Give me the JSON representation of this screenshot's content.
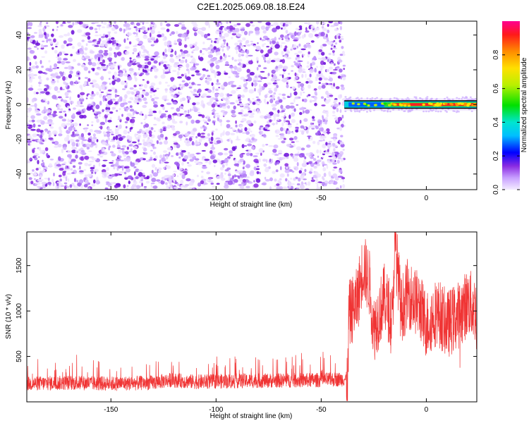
{
  "title": "C2E1.2025.069.08.18.E24",
  "chart_data": [
    {
      "type": "heatmap",
      "xlabel": "Height of straight line (km)",
      "ylabel": "Frequency (Hz)",
      "xlim": [
        -190,
        24
      ],
      "ylim": [
        -49,
        48
      ],
      "xticks": [
        -150,
        -100,
        -50,
        0
      ],
      "yticks": [
        40,
        20,
        0,
        -20,
        -40
      ],
      "noise_region": {
        "x": [
          -190,
          -39
        ],
        "y": [
          -49,
          48
        ],
        "amplitude": 0.1
      },
      "signal_band": {
        "x": [
          -39,
          24
        ],
        "frequency": 0,
        "amplitude": 0.9
      },
      "colorbar": {
        "label": "Normalized spectral amplitude",
        "range": [
          0.0,
          1.0
        ],
        "ticks": [
          0.0,
          0.2,
          0.4,
          0.6,
          0.8
        ],
        "tick_labels": [
          "0.0",
          "0.2",
          "0.4",
          "0.6",
          "0.8"
        ],
        "colors": [
          "#f4ecff",
          "#8a2be2",
          "#0000ff",
          "#00e0ff",
          "#00e000",
          "#f0f000",
          "#ff8c00",
          "#ff0000",
          "#ff0090"
        ]
      }
    },
    {
      "type": "line",
      "xlabel": "Height of straight line (km)",
      "ylabel": "SNR (10 * v/v)",
      "xlim": [
        -190,
        24
      ],
      "ylim": [
        0,
        1870
      ],
      "xticks": [
        -150,
        -100,
        -50,
        0
      ],
      "yticks": [
        500,
        1000,
        1500
      ],
      "color": "#f03434",
      "series": [
        {
          "x": [
            -190,
            -170,
            -150,
            -130,
            -122,
            -110,
            -90,
            -70,
            -50,
            -40,
            -37
          ],
          "y": [
            200,
            210,
            200,
            210,
            240,
            220,
            230,
            235,
            240,
            250,
            250
          ]
        },
        {
          "x": [
            -37,
            -33,
            -30,
            -27,
            -25,
            -22,
            -20,
            -16,
            -15,
            -12,
            -9,
            -5,
            -3,
            0,
            5,
            10,
            15,
            20,
            24
          ],
          "y": [
            950,
            1100,
            1500,
            1300,
            800,
            1000,
            1150,
            900,
            1850,
            1000,
            1200,
            1100,
            1050,
            850,
            1000,
            850,
            950,
            1100,
            1000
          ]
        }
      ]
    }
  ]
}
